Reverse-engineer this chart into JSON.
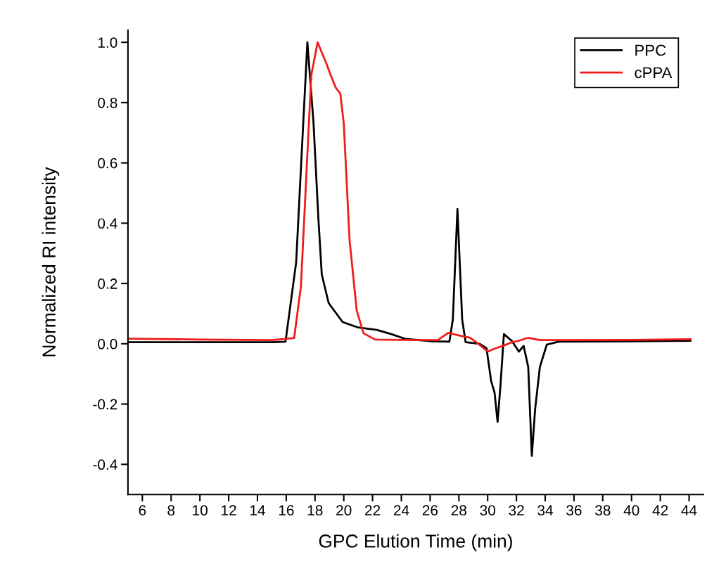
{
  "chart_data": {
    "type": "line",
    "xlabel": "GPC Elution Time (min)",
    "ylabel": "Normalized RI intensity",
    "xlim": [
      5,
      45
    ],
    "xticks": [
      6,
      8,
      10,
      12,
      14,
      16,
      18,
      20,
      22,
      24,
      26,
      28,
      30,
      32,
      34,
      36,
      38,
      40,
      42,
      44
    ],
    "ylim": [
      -0.5,
      1.04
    ],
    "yticks": [
      {
        "value": 1.0,
        "label": "1.0"
      },
      0.8,
      0.6,
      0.4,
      0.2,
      {
        "value": 0.0,
        "label": "0.0"
      },
      -0.2,
      -0.4
    ],
    "grid": false,
    "legend": "top right",
    "marker": "none",
    "line_style": "solid",
    "series": [
      {
        "name": "PPC",
        "color": "#000000",
        "x": [
          5,
          10,
          15,
          15.95,
          16.69,
          17.02,
          17.47,
          17.9,
          18.23,
          18.47,
          18.95,
          19.92,
          21.0,
          22.3,
          23.3,
          24.28,
          26.2,
          27.34,
          27.58,
          27.9,
          28.23,
          28.47,
          29.44,
          29.92,
          30.24,
          30.48,
          30.69,
          30.89,
          31.13,
          31.69,
          32.17,
          32.5,
          32.82,
          33.07,
          33.3,
          33.63,
          34.11,
          34.92,
          40,
          44.1
        ],
        "values": [
          0.005,
          0.005,
          0.005,
          0.007,
          0.27,
          0.58,
          1.0,
          0.73,
          0.42,
          0.23,
          0.135,
          0.072,
          0.054,
          0.046,
          0.032,
          0.016,
          0.008,
          0.007,
          0.08,
          0.447,
          0.08,
          0.005,
          0.0,
          -0.015,
          -0.123,
          -0.162,
          -0.259,
          -0.139,
          0.032,
          0.009,
          -0.026,
          -0.007,
          -0.077,
          -0.372,
          -0.217,
          -0.077,
          -0.003,
          0.007,
          0.008,
          0.01
        ]
      },
      {
        "name": "cPPA",
        "color": "#ee1c1c",
        "x": [
          5,
          10,
          15,
          16.55,
          17.02,
          17.42,
          17.74,
          18.18,
          18.79,
          19.1,
          19.44,
          19.76,
          20.0,
          20.4,
          20.9,
          21.37,
          22.18,
          24,
          26.53,
          27.26,
          27.98,
          28.79,
          29.35,
          30.0,
          30.56,
          31.05,
          31.69,
          32.1,
          32.82,
          33.63,
          34.9,
          40,
          44.1
        ],
        "values": [
          0.017,
          0.014,
          0.012,
          0.019,
          0.19,
          0.58,
          0.89,
          1.0,
          0.93,
          0.89,
          0.85,
          0.83,
          0.73,
          0.345,
          0.11,
          0.035,
          0.014,
          0.013,
          0.012,
          0.036,
          0.028,
          0.02,
          0.0,
          -0.026,
          -0.015,
          -0.007,
          0.005,
          0.009,
          0.02,
          0.012,
          0.012,
          0.013,
          0.015
        ]
      }
    ]
  }
}
